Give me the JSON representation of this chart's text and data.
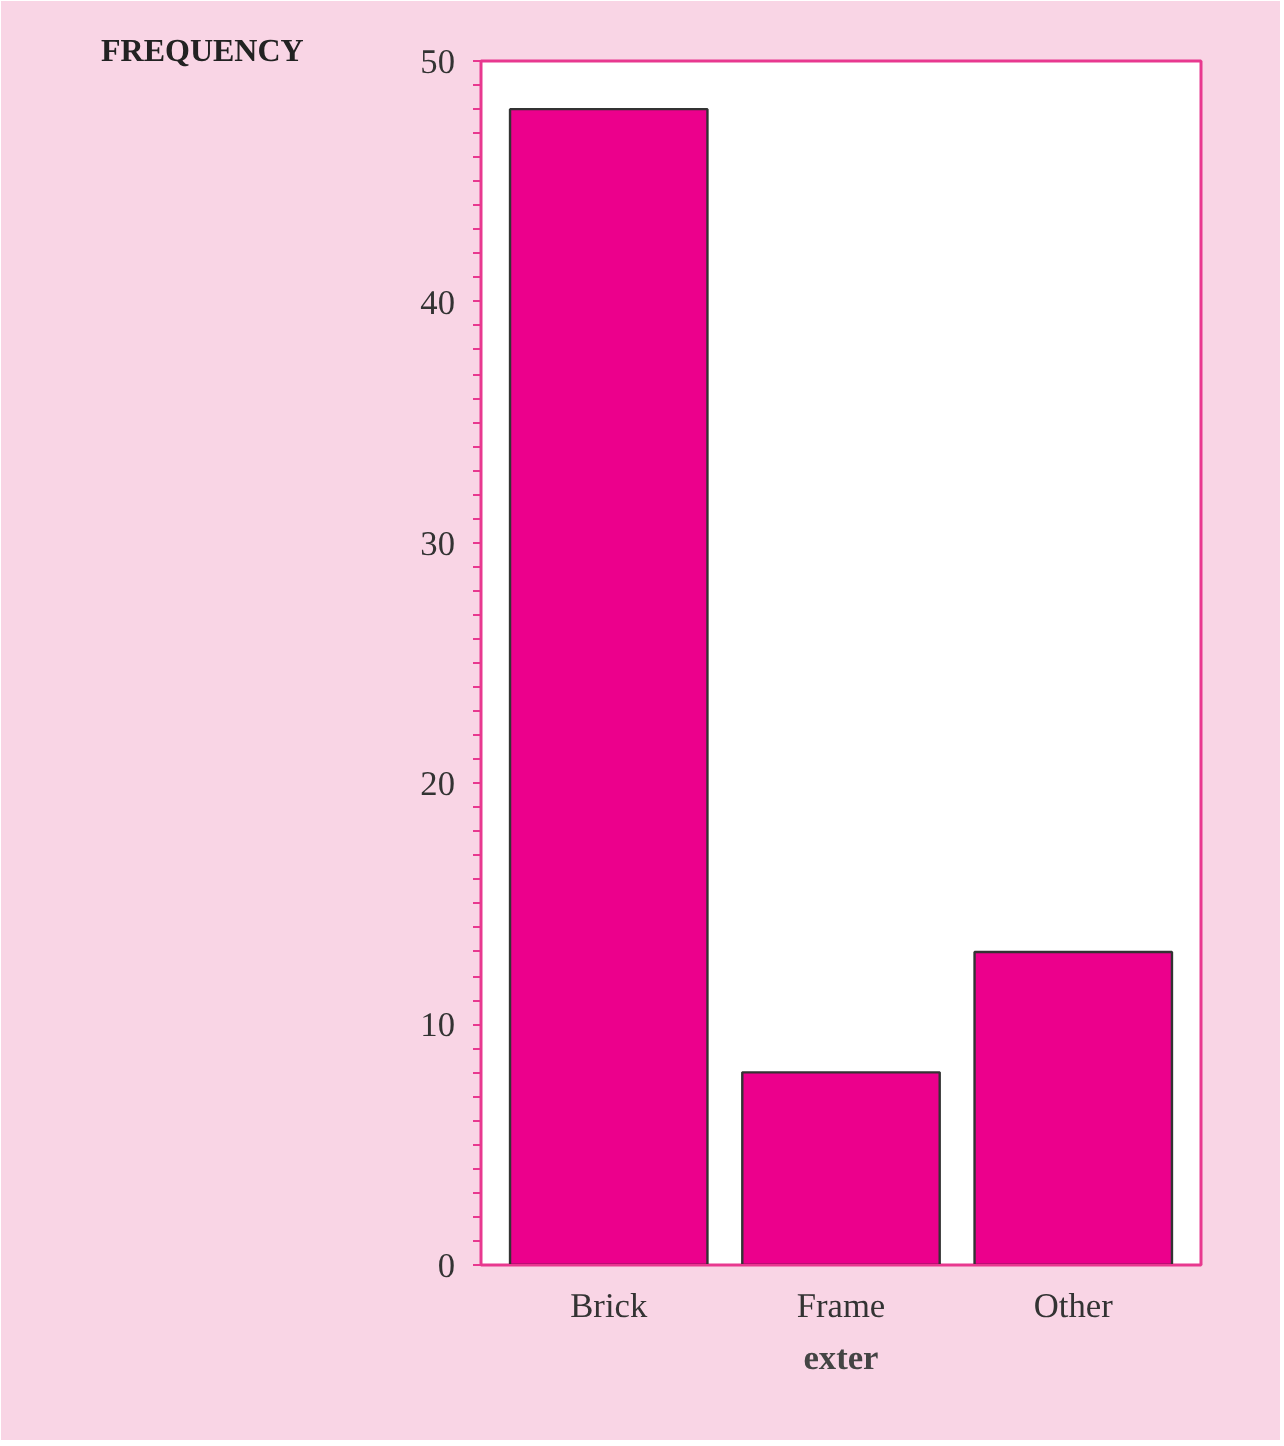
{
  "chart_data": {
    "type": "bar",
    "xlabel": "exter",
    "ylabel": "FREQUENCY",
    "categories": [
      "Brick",
      "Frame",
      "Other"
    ],
    "values": [
      48,
      8,
      13
    ],
    "color": "#ec008c",
    "ylim": [
      0,
      50
    ],
    "yticks": [
      0,
      10,
      20,
      30,
      40,
      50
    ],
    "grid": false
  }
}
